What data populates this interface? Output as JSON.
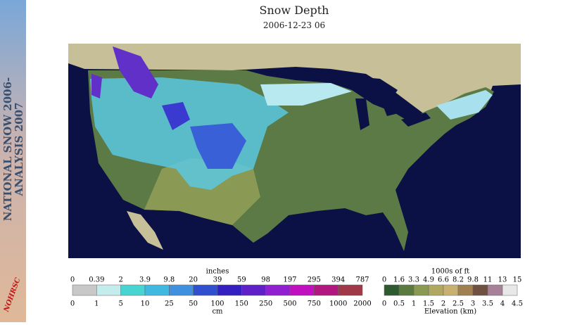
{
  "banner": {
    "lines": [
      "NATIONAL SNOW 2006-",
      "ANALYSIS 2007"
    ],
    "logo": "NOHRSC"
  },
  "header": {
    "title": "Snow Depth",
    "date": "2006-12-23 06"
  },
  "snow_legend": {
    "top_title": "inches",
    "top_labels": [
      0,
      0.39,
      2,
      3.9,
      9.8,
      20,
      39,
      59,
      98,
      197,
      295,
      394,
      787
    ],
    "bottom_title": "cm",
    "bottom_labels": [
      0,
      1,
      5,
      10,
      25,
      50,
      100,
      150,
      250,
      500,
      750,
      1000,
      2000
    ]
  },
  "elevation_legend": {
    "top_title": "1000s of ft",
    "top_labels": [
      0,
      1.6,
      3.3,
      4.9,
      6.6,
      8.2,
      9.8,
      11,
      13,
      15
    ],
    "bottom_title": "Elevation (km)",
    "bottom_labels": [
      0,
      0.5,
      1,
      1.5,
      2,
      2.5,
      3,
      3.5,
      4,
      4.5
    ]
  }
}
